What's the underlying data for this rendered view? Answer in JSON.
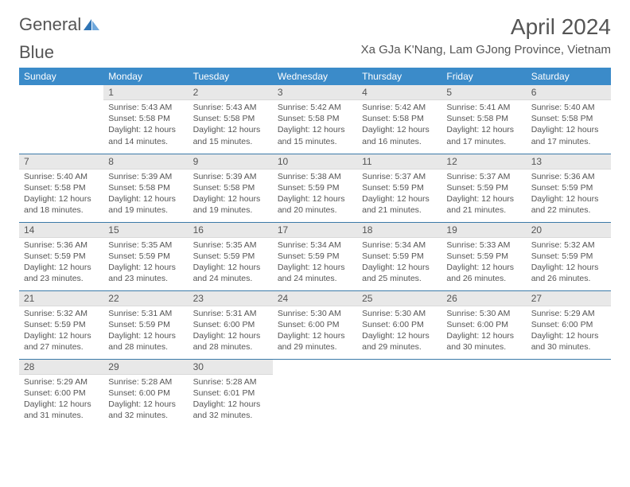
{
  "header": {
    "logo_text_a": "General",
    "logo_text_b": "Blue",
    "month_title": "April 2024",
    "location": "Xa GJa K'Nang, Lam GJong Province, Vietnam"
  },
  "colors": {
    "header_bg": "#3b8bc9",
    "header_text": "#ffffff",
    "daynum_bg": "#e8e8e8",
    "row_divider": "#3b7aa8",
    "body_text": "#555555",
    "logo_blue": "#2f74b5"
  },
  "weekdays": [
    "Sunday",
    "Monday",
    "Tuesday",
    "Wednesday",
    "Thursday",
    "Friday",
    "Saturday"
  ],
  "weeks": [
    [
      {
        "day": "",
        "sunrise": "",
        "sunset": "",
        "daylight": ""
      },
      {
        "day": "1",
        "sunrise": "Sunrise: 5:43 AM",
        "sunset": "Sunset: 5:58 PM",
        "daylight": "Daylight: 12 hours and 14 minutes."
      },
      {
        "day": "2",
        "sunrise": "Sunrise: 5:43 AM",
        "sunset": "Sunset: 5:58 PM",
        "daylight": "Daylight: 12 hours and 15 minutes."
      },
      {
        "day": "3",
        "sunrise": "Sunrise: 5:42 AM",
        "sunset": "Sunset: 5:58 PM",
        "daylight": "Daylight: 12 hours and 15 minutes."
      },
      {
        "day": "4",
        "sunrise": "Sunrise: 5:42 AM",
        "sunset": "Sunset: 5:58 PM",
        "daylight": "Daylight: 12 hours and 16 minutes."
      },
      {
        "day": "5",
        "sunrise": "Sunrise: 5:41 AM",
        "sunset": "Sunset: 5:58 PM",
        "daylight": "Daylight: 12 hours and 17 minutes."
      },
      {
        "day": "6",
        "sunrise": "Sunrise: 5:40 AM",
        "sunset": "Sunset: 5:58 PM",
        "daylight": "Daylight: 12 hours and 17 minutes."
      }
    ],
    [
      {
        "day": "7",
        "sunrise": "Sunrise: 5:40 AM",
        "sunset": "Sunset: 5:58 PM",
        "daylight": "Daylight: 12 hours and 18 minutes."
      },
      {
        "day": "8",
        "sunrise": "Sunrise: 5:39 AM",
        "sunset": "Sunset: 5:58 PM",
        "daylight": "Daylight: 12 hours and 19 minutes."
      },
      {
        "day": "9",
        "sunrise": "Sunrise: 5:39 AM",
        "sunset": "Sunset: 5:58 PM",
        "daylight": "Daylight: 12 hours and 19 minutes."
      },
      {
        "day": "10",
        "sunrise": "Sunrise: 5:38 AM",
        "sunset": "Sunset: 5:59 PM",
        "daylight": "Daylight: 12 hours and 20 minutes."
      },
      {
        "day": "11",
        "sunrise": "Sunrise: 5:37 AM",
        "sunset": "Sunset: 5:59 PM",
        "daylight": "Daylight: 12 hours and 21 minutes."
      },
      {
        "day": "12",
        "sunrise": "Sunrise: 5:37 AM",
        "sunset": "Sunset: 5:59 PM",
        "daylight": "Daylight: 12 hours and 21 minutes."
      },
      {
        "day": "13",
        "sunrise": "Sunrise: 5:36 AM",
        "sunset": "Sunset: 5:59 PM",
        "daylight": "Daylight: 12 hours and 22 minutes."
      }
    ],
    [
      {
        "day": "14",
        "sunrise": "Sunrise: 5:36 AM",
        "sunset": "Sunset: 5:59 PM",
        "daylight": "Daylight: 12 hours and 23 minutes."
      },
      {
        "day": "15",
        "sunrise": "Sunrise: 5:35 AM",
        "sunset": "Sunset: 5:59 PM",
        "daylight": "Daylight: 12 hours and 23 minutes."
      },
      {
        "day": "16",
        "sunrise": "Sunrise: 5:35 AM",
        "sunset": "Sunset: 5:59 PM",
        "daylight": "Daylight: 12 hours and 24 minutes."
      },
      {
        "day": "17",
        "sunrise": "Sunrise: 5:34 AM",
        "sunset": "Sunset: 5:59 PM",
        "daylight": "Daylight: 12 hours and 24 minutes."
      },
      {
        "day": "18",
        "sunrise": "Sunrise: 5:34 AM",
        "sunset": "Sunset: 5:59 PM",
        "daylight": "Daylight: 12 hours and 25 minutes."
      },
      {
        "day": "19",
        "sunrise": "Sunrise: 5:33 AM",
        "sunset": "Sunset: 5:59 PM",
        "daylight": "Daylight: 12 hours and 26 minutes."
      },
      {
        "day": "20",
        "sunrise": "Sunrise: 5:32 AM",
        "sunset": "Sunset: 5:59 PM",
        "daylight": "Daylight: 12 hours and 26 minutes."
      }
    ],
    [
      {
        "day": "21",
        "sunrise": "Sunrise: 5:32 AM",
        "sunset": "Sunset: 5:59 PM",
        "daylight": "Daylight: 12 hours and 27 minutes."
      },
      {
        "day": "22",
        "sunrise": "Sunrise: 5:31 AM",
        "sunset": "Sunset: 5:59 PM",
        "daylight": "Daylight: 12 hours and 28 minutes."
      },
      {
        "day": "23",
        "sunrise": "Sunrise: 5:31 AM",
        "sunset": "Sunset: 6:00 PM",
        "daylight": "Daylight: 12 hours and 28 minutes."
      },
      {
        "day": "24",
        "sunrise": "Sunrise: 5:30 AM",
        "sunset": "Sunset: 6:00 PM",
        "daylight": "Daylight: 12 hours and 29 minutes."
      },
      {
        "day": "25",
        "sunrise": "Sunrise: 5:30 AM",
        "sunset": "Sunset: 6:00 PM",
        "daylight": "Daylight: 12 hours and 29 minutes."
      },
      {
        "day": "26",
        "sunrise": "Sunrise: 5:30 AM",
        "sunset": "Sunset: 6:00 PM",
        "daylight": "Daylight: 12 hours and 30 minutes."
      },
      {
        "day": "27",
        "sunrise": "Sunrise: 5:29 AM",
        "sunset": "Sunset: 6:00 PM",
        "daylight": "Daylight: 12 hours and 30 minutes."
      }
    ],
    [
      {
        "day": "28",
        "sunrise": "Sunrise: 5:29 AM",
        "sunset": "Sunset: 6:00 PM",
        "daylight": "Daylight: 12 hours and 31 minutes."
      },
      {
        "day": "29",
        "sunrise": "Sunrise: 5:28 AM",
        "sunset": "Sunset: 6:00 PM",
        "daylight": "Daylight: 12 hours and 32 minutes."
      },
      {
        "day": "30",
        "sunrise": "Sunrise: 5:28 AM",
        "sunset": "Sunset: 6:01 PM",
        "daylight": "Daylight: 12 hours and 32 minutes."
      },
      {
        "day": "",
        "sunrise": "",
        "sunset": "",
        "daylight": ""
      },
      {
        "day": "",
        "sunrise": "",
        "sunset": "",
        "daylight": ""
      },
      {
        "day": "",
        "sunrise": "",
        "sunset": "",
        "daylight": ""
      },
      {
        "day": "",
        "sunrise": "",
        "sunset": "",
        "daylight": ""
      }
    ]
  ]
}
